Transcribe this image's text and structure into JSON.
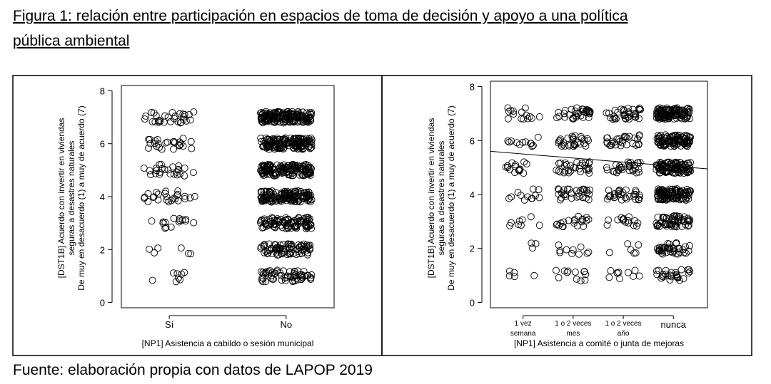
{
  "title_lines": [
    "Figura 1: relación entre participación en espacios de toma de decisión y apoyo a una política",
    "pública ambiental"
  ],
  "caption": "Fuente: elaboración propia con datos de LAPOP 2019",
  "chart_data": [
    {
      "type": "jitter",
      "x_label": "[NP1] Asistencia a cabildo o sesión municipal",
      "y_label": [
        "[DST1B] Acuerdo con invertir en viviendas",
        "seguras a desastres naturales",
        "De muy en desacuerdo (1) a muy de acuerdo (7)"
      ],
      "categories": [
        [
          "Sí"
        ],
        [
          "No"
        ]
      ],
      "levels": [
        1,
        2,
        3,
        4,
        5,
        6,
        7
      ],
      "counts": [
        [
          8,
          6,
          15,
          25,
          25,
          25,
          30
        ],
        [
          60,
          80,
          100,
          150,
          150,
          150,
          180
        ]
      ],
      "xlim": [
        0.59,
        2.41
      ],
      "ylim": [
        -0.2,
        8.2
      ],
      "yticks": [
        0,
        2,
        4,
        6,
        8
      ]
    },
    {
      "type": "jitter",
      "x_label": "[NP1] Asistencia a comité o junta de mejoras",
      "y_label": [
        "[DST1B] Acuerdo con invertir en viviendas",
        "seguras a desastres naturales",
        "De muy en desacuerdo (1) a muy de acuerdo (7)"
      ],
      "categories": [
        [
          "1 vez",
          "semana"
        ],
        [
          "1 o 2 veces",
          "mes"
        ],
        [
          "1 o 2 veces",
          "año"
        ],
        [
          "nunca"
        ]
      ],
      "levels": [
        1,
        2,
        3,
        4,
        5,
        6,
        7
      ],
      "counts": [
        [
          5,
          3,
          8,
          12,
          15,
          12,
          15
        ],
        [
          12,
          10,
          20,
          30,
          30,
          30,
          35
        ],
        [
          10,
          6,
          15,
          30,
          30,
          30,
          35
        ],
        [
          30,
          40,
          60,
          100,
          100,
          100,
          120
        ]
      ],
      "trend_x": [
        0.35,
        4.68
      ],
      "trend_y": [
        5.6,
        4.95
      ],
      "xlim": [
        0.35,
        4.68
      ],
      "ylim": [
        -0.2,
        8.2
      ],
      "yticks": [
        0,
        2,
        4,
        6,
        8
      ]
    }
  ]
}
